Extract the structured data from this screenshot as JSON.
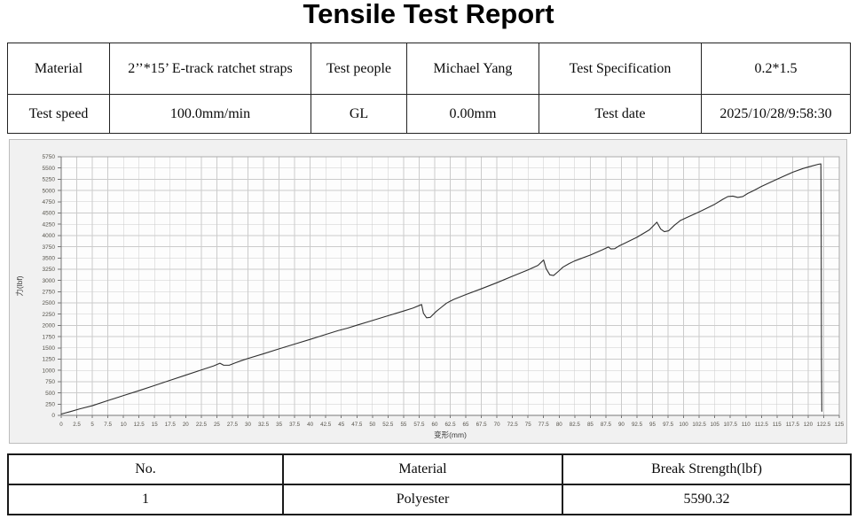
{
  "title": "Tensile Test Report",
  "info_table": {
    "rows": [
      {
        "cells": [
          "Material",
          "2’’*15’ E-track ratchet straps",
          "Test people",
          "Michael Yang",
          "Test Specification",
          "0.2*1.5"
        ]
      },
      {
        "cells": [
          "Test speed",
          "100.0mm/min",
          "GL",
          "0.00mm",
          "Test date",
          "2025/10/28/9:58:30"
        ]
      }
    ]
  },
  "results_table": {
    "headers": [
      "No.",
      "Material",
      "Break Strength(lbf)"
    ],
    "rows": [
      [
        "1",
        "Polyester",
        "5590.32"
      ]
    ]
  },
  "colors": {
    "line": "#2f2f2f",
    "grid": "#cbcbcb",
    "plot_bg": "#fdfdfd",
    "panel_bg": "#f1f1f1",
    "plot_border": "#ababab",
    "axis": "#777777",
    "tick_text": "#55524a",
    "axis_title": "#3a3a3a"
  },
  "chart_data": {
    "type": "line",
    "title": "",
    "xlabel": "变形(mm)",
    "ylabel": "力(lbf)",
    "xlim": [
      0,
      125
    ],
    "xtick_step": 2.5,
    "ylim": [
      0,
      5750
    ],
    "ytick_step": 250,
    "grid": true,
    "legend": "none",
    "break_point": {
      "x": 122.1,
      "y": 5590.32
    },
    "series": [
      {
        "name": "force-vs-deformation",
        "points": [
          [
            0,
            30
          ],
          [
            1.5,
            85
          ],
          [
            3,
            145
          ],
          [
            5,
            215
          ],
          [
            7.5,
            330
          ],
          [
            10,
            440
          ],
          [
            12.5,
            550
          ],
          [
            15,
            665
          ],
          [
            17.5,
            780
          ],
          [
            20,
            895
          ],
          [
            22.5,
            1010
          ],
          [
            24.5,
            1100
          ],
          [
            25.5,
            1160
          ],
          [
            26.1,
            1115
          ],
          [
            27,
            1115
          ],
          [
            27.9,
            1165
          ],
          [
            29,
            1220
          ],
          [
            30,
            1265
          ],
          [
            32.5,
            1370
          ],
          [
            35,
            1480
          ],
          [
            37.5,
            1585
          ],
          [
            40,
            1690
          ],
          [
            42.5,
            1800
          ],
          [
            44.5,
            1885
          ],
          [
            46,
            1940
          ],
          [
            47.5,
            2005
          ],
          [
            50,
            2110
          ],
          [
            52.5,
            2215
          ],
          [
            55,
            2320
          ],
          [
            56.5,
            2385
          ],
          [
            57.9,
            2465
          ],
          [
            58.2,
            2270
          ],
          [
            58.7,
            2170
          ],
          [
            59.3,
            2180
          ],
          [
            60.2,
            2305
          ],
          [
            61,
            2395
          ],
          [
            61.9,
            2495
          ],
          [
            63,
            2575
          ],
          [
            65,
            2685
          ],
          [
            67.5,
            2815
          ],
          [
            70,
            2950
          ],
          [
            72.5,
            3095
          ],
          [
            75,
            3235
          ],
          [
            76.6,
            3335
          ],
          [
            77.5,
            3455
          ],
          [
            77.9,
            3265
          ],
          [
            78.5,
            3125
          ],
          [
            79.1,
            3110
          ],
          [
            79.9,
            3205
          ],
          [
            80.6,
            3295
          ],
          [
            81.6,
            3375
          ],
          [
            82.5,
            3435
          ],
          [
            85,
            3565
          ],
          [
            87,
            3685
          ],
          [
            87.9,
            3745
          ],
          [
            88.3,
            3700
          ],
          [
            88.9,
            3705
          ],
          [
            89.6,
            3765
          ],
          [
            90.5,
            3825
          ],
          [
            92.5,
            3960
          ],
          [
            94.5,
            4125
          ],
          [
            95.7,
            4295
          ],
          [
            96.3,
            4145
          ],
          [
            96.9,
            4085
          ],
          [
            97.6,
            4105
          ],
          [
            98.5,
            4225
          ],
          [
            99.5,
            4335
          ],
          [
            101,
            4430
          ],
          [
            102.5,
            4525
          ],
          [
            105,
            4695
          ],
          [
            106.3,
            4805
          ],
          [
            107.1,
            4865
          ],
          [
            107.9,
            4875
          ],
          [
            108.7,
            4845
          ],
          [
            109.5,
            4865
          ],
          [
            110.3,
            4935
          ],
          [
            111.2,
            4995
          ],
          [
            112.5,
            5090
          ],
          [
            115,
            5250
          ],
          [
            117.5,
            5405
          ],
          [
            119.2,
            5490
          ],
          [
            120.6,
            5545
          ],
          [
            121.7,
            5585
          ],
          [
            122.05,
            5592
          ],
          [
            122.1,
            4000
          ],
          [
            122.15,
            1200
          ],
          [
            122.2,
            90
          ]
        ]
      }
    ]
  }
}
